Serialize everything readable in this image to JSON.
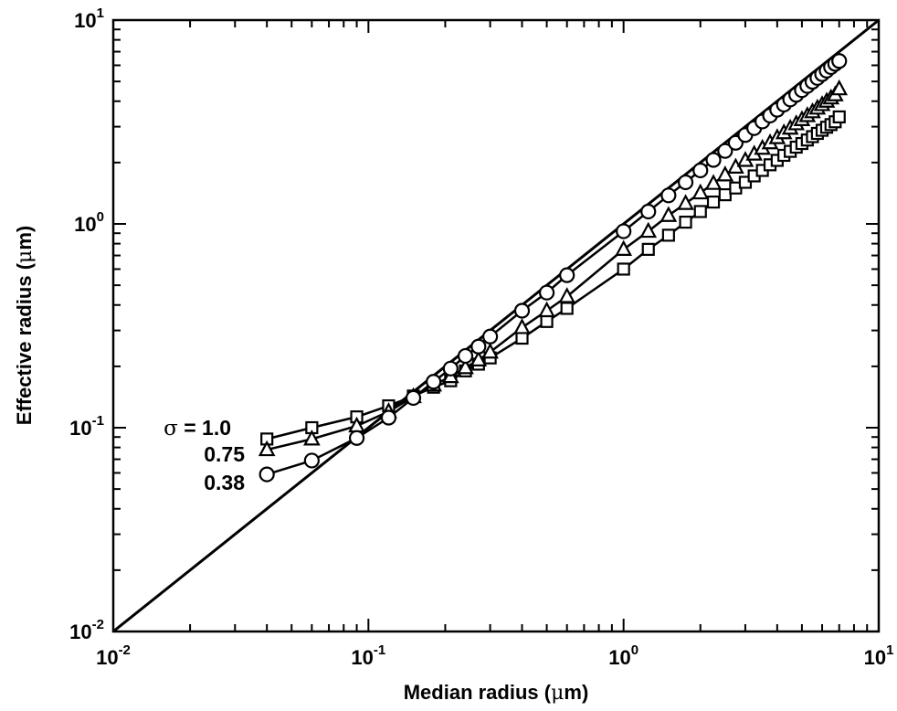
{
  "chart_data": {
    "type": "scatter",
    "xlabel": {
      "text": "Median radius (",
      "unit_prefix": "μ",
      "unit_rest": "m)"
    },
    "ylabel": {
      "text": "Effective radius (",
      "unit_prefix": "μ",
      "unit_rest": "m)"
    },
    "xscale": "log",
    "yscale": "log",
    "xlim": [
      0.01,
      10
    ],
    "ylim": [
      0.01,
      10
    ],
    "x_ticks": [
      {
        "value": 0.01,
        "base": "10",
        "exp": "-2"
      },
      {
        "value": 0.1,
        "base": "10",
        "exp": "-1"
      },
      {
        "value": 1,
        "base": "10",
        "exp": "0"
      },
      {
        "value": 10,
        "base": "10",
        "exp": "1"
      }
    ],
    "y_ticks": [
      {
        "value": 0.01,
        "base": "10",
        "exp": "-2"
      },
      {
        "value": 0.1,
        "base": "10",
        "exp": "-1"
      },
      {
        "value": 1,
        "base": "10",
        "exp": "0"
      },
      {
        "value": 10,
        "base": "10",
        "exp": "1"
      }
    ],
    "reference_line": {
      "x": [
        0.01,
        10
      ],
      "y": [
        0.01,
        10
      ]
    },
    "grid": false,
    "series": [
      {
        "name": "σ = 1.0",
        "label_parts": {
          "symbol": "σ",
          "rest": " = 1.0"
        },
        "marker": "square",
        "points": [
          [
            0.04,
            0.088
          ],
          [
            0.06,
            0.1
          ],
          [
            0.09,
            0.113
          ],
          [
            0.12,
            0.128
          ],
          [
            0.15,
            0.143
          ],
          [
            0.18,
            0.158
          ],
          [
            0.21,
            0.17
          ],
          [
            0.24,
            0.19
          ],
          [
            0.27,
            0.205
          ],
          [
            0.3,
            0.22
          ],
          [
            0.4,
            0.275
          ],
          [
            0.5,
            0.332
          ],
          [
            0.6,
            0.385
          ],
          [
            1.0,
            0.6
          ],
          [
            1.25,
            0.75
          ],
          [
            1.5,
            0.88
          ],
          [
            1.75,
            1.02
          ],
          [
            2.0,
            1.15
          ],
          [
            2.25,
            1.28
          ],
          [
            2.5,
            1.39
          ],
          [
            2.75,
            1.5
          ],
          [
            3.0,
            1.6
          ],
          [
            3.25,
            1.72
          ],
          [
            3.5,
            1.83
          ],
          [
            3.75,
            1.95
          ],
          [
            4.0,
            2.05
          ],
          [
            4.25,
            2.17
          ],
          [
            4.5,
            2.27
          ],
          [
            4.75,
            2.38
          ],
          [
            5.0,
            2.48
          ],
          [
            5.25,
            2.58
          ],
          [
            5.5,
            2.68
          ],
          [
            5.75,
            2.78
          ],
          [
            6.0,
            2.88
          ],
          [
            6.25,
            2.98
          ],
          [
            6.5,
            3.07
          ],
          [
            6.75,
            3.17
          ],
          [
            7.0,
            3.35
          ]
        ]
      },
      {
        "name": "0.75",
        "label_parts": {
          "symbol": "",
          "rest": "0.75"
        },
        "marker": "triangle",
        "points": [
          [
            0.04,
            0.078
          ],
          [
            0.06,
            0.088
          ],
          [
            0.09,
            0.102
          ],
          [
            0.12,
            0.12
          ],
          [
            0.15,
            0.142
          ],
          [
            0.18,
            0.162
          ],
          [
            0.21,
            0.178
          ],
          [
            0.24,
            0.197
          ],
          [
            0.27,
            0.215
          ],
          [
            0.3,
            0.235
          ],
          [
            0.4,
            0.31
          ],
          [
            0.5,
            0.375
          ],
          [
            0.6,
            0.44
          ],
          [
            1.0,
            0.75
          ],
          [
            1.25,
            0.92
          ],
          [
            1.5,
            1.1
          ],
          [
            1.75,
            1.26
          ],
          [
            2.0,
            1.42
          ],
          [
            2.25,
            1.58
          ],
          [
            2.5,
            1.74
          ],
          [
            2.75,
            1.9
          ],
          [
            3.0,
            2.05
          ],
          [
            3.25,
            2.2
          ],
          [
            3.5,
            2.35
          ],
          [
            3.75,
            2.5
          ],
          [
            4.0,
            2.65
          ],
          [
            4.25,
            2.8
          ],
          [
            4.5,
            2.95
          ],
          [
            4.75,
            3.1
          ],
          [
            5.0,
            3.25
          ],
          [
            5.25,
            3.4
          ],
          [
            5.5,
            3.55
          ],
          [
            5.75,
            3.7
          ],
          [
            6.0,
            3.85
          ],
          [
            6.25,
            4.0
          ],
          [
            6.5,
            4.15
          ],
          [
            6.75,
            4.3
          ],
          [
            7.0,
            4.6
          ]
        ]
      },
      {
        "name": "0.38",
        "label_parts": {
          "symbol": "",
          "rest": "0.38"
        },
        "marker": "circle",
        "points": [
          [
            0.04,
            0.059
          ],
          [
            0.06,
            0.069
          ],
          [
            0.09,
            0.089
          ],
          [
            0.12,
            0.112
          ],
          [
            0.15,
            0.14
          ],
          [
            0.18,
            0.168
          ],
          [
            0.21,
            0.195
          ],
          [
            0.24,
            0.225
          ],
          [
            0.27,
            0.25
          ],
          [
            0.3,
            0.28
          ],
          [
            0.4,
            0.375
          ],
          [
            0.5,
            0.46
          ],
          [
            0.6,
            0.56
          ],
          [
            1.0,
            0.92
          ],
          [
            1.25,
            1.15
          ],
          [
            1.5,
            1.38
          ],
          [
            1.75,
            1.6
          ],
          [
            2.0,
            1.83
          ],
          [
            2.25,
            2.06
          ],
          [
            2.5,
            2.28
          ],
          [
            2.75,
            2.5
          ],
          [
            3.0,
            2.73
          ],
          [
            3.25,
            2.95
          ],
          [
            3.5,
            3.18
          ],
          [
            3.75,
            3.4
          ],
          [
            4.0,
            3.63
          ],
          [
            4.25,
            3.85
          ],
          [
            4.5,
            4.08
          ],
          [
            4.75,
            4.3
          ],
          [
            5.0,
            4.53
          ],
          [
            5.25,
            4.75
          ],
          [
            5.5,
            4.98
          ],
          [
            5.75,
            5.2
          ],
          [
            6.0,
            5.43
          ],
          [
            6.25,
            5.65
          ],
          [
            6.5,
            5.88
          ],
          [
            6.75,
            6.1
          ],
          [
            7.0,
            6.3
          ]
        ]
      }
    ]
  }
}
